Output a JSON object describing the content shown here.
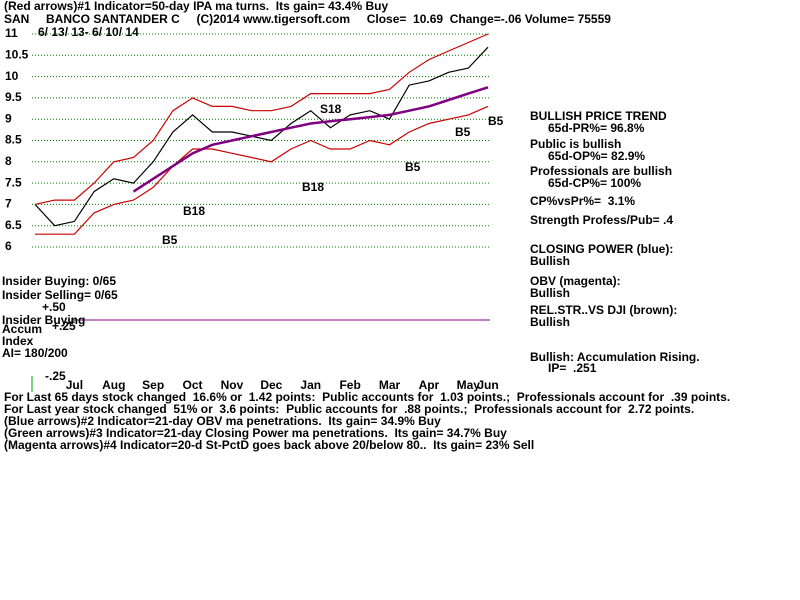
{
  "chart_data": {
    "type": "line",
    "title": "(Red arrows)#1 Indicator=50-day IPA ma turns.  Its gain= 43.4% Buy",
    "subtitle": "SAN     BANCO SANTANDER C     (C)2014 www.tigersoft.com     Close=  10.69  Change=-.06 Volume= 75559",
    "date_range": "6/ 13/ 13- 6/ 10/ 14",
    "categories": [
      null,
      null,
      "Jul",
      null,
      "Aug",
      null,
      "Sep",
      null,
      "Oct",
      null,
      "Nov",
      null,
      "Dec",
      null,
      "Jan",
      null,
      "Feb",
      null,
      "Mar",
      null,
      "Apr",
      null,
      "May",
      "Jun"
    ],
    "series": [
      {
        "name": "Price",
        "color": "#000000",
        "values": [
          7.0,
          6.5,
          6.6,
          7.3,
          7.6,
          7.5,
          8.0,
          8.7,
          9.1,
          8.7,
          8.7,
          8.6,
          8.5,
          8.9,
          9.2,
          8.8,
          9.1,
          9.2,
          9.0,
          9.8,
          9.9,
          10.1,
          10.2,
          10.69
        ]
      },
      {
        "name": "Upper band",
        "color": "#cc0000",
        "values": [
          7.0,
          7.1,
          7.1,
          7.5,
          8.0,
          8.1,
          8.5,
          9.2,
          9.5,
          9.3,
          9.3,
          9.2,
          9.2,
          9.3,
          9.6,
          9.6,
          9.6,
          9.6,
          9.7,
          10.1,
          10.4,
          10.6,
          10.8,
          11.0
        ]
      },
      {
        "name": "Lower band",
        "color": "#cc0000",
        "values": [
          6.3,
          6.3,
          6.3,
          6.8,
          7.0,
          7.1,
          7.4,
          7.9,
          8.3,
          8.3,
          8.2,
          8.1,
          8.0,
          8.3,
          8.5,
          8.3,
          8.3,
          8.5,
          8.4,
          8.7,
          8.9,
          9.0,
          9.1,
          9.3
        ]
      },
      {
        "name": "Moving average",
        "color": "#800080",
        "values": [
          null,
          null,
          null,
          null,
          null,
          7.3,
          7.6,
          7.9,
          8.2,
          8.4,
          8.5,
          8.6,
          8.7,
          8.8,
          8.9,
          8.95,
          9.0,
          9.05,
          9.1,
          9.2,
          9.3,
          9.45,
          9.6,
          9.75
        ]
      }
    ],
    "ylim": [
      6,
      11
    ],
    "yticks": [
      6,
      6.5,
      7,
      7.5,
      8,
      8.5,
      9,
      9.5,
      10,
      10.5,
      11
    ],
    "grid": true,
    "annotations": [
      "S18",
      "B5",
      "B5",
      "B5",
      "B18",
      "B18",
      "B5"
    ],
    "right_panel": [
      "BULLISH PRICE TREND",
      "65d-PR%= 96.8%",
      "Public is bullish",
      "65d-OP%= 82.9%",
      "Professionals are bullish",
      "65d-CP%= 100%",
      "CP%vsPr%=  3.1%",
      "Strength Profess/Pub= .4",
      "CLOSING POWER (blue):",
      "Bullish",
      "OBV (magenta):",
      "Bullish",
      "REL.STR..VS DJI (brown):",
      "Bullish",
      "Bullish: Accumulation Rising.",
      "IP=  .251"
    ],
    "lower_panel": [
      "Insider Buying: 0/65",
      "Insider Selling= 0/65",
      "+.50",
      "Insider Buying",
      "Accum",
      "+.25",
      "Index",
      "AI= 180/200",
      "-.25"
    ],
    "footer": [
      "For Last 65 days stock changed  16.6% or  1.42 points:  Public accounts for  1.03 points.;  Professionals account for  .39 points.",
      "For Last year stock changed  51% or  3.6 points:  Public accounts for  .88 points.;  Professionals account for  2.72 points.",
      "(Blue arrows)#2 Indicator=21-day OBV ma penetrations.  Its gain= 34.9% Buy",
      "(Green arrows)#3 Indicator=21-day Closing Power ma penetrations.  Its gain= 34.7% Buy",
      "(Magenta arrows)#4 Indicator=20-d St-PctD goes back above 20/below 80..  Its gain= 23% Sell"
    ]
  }
}
